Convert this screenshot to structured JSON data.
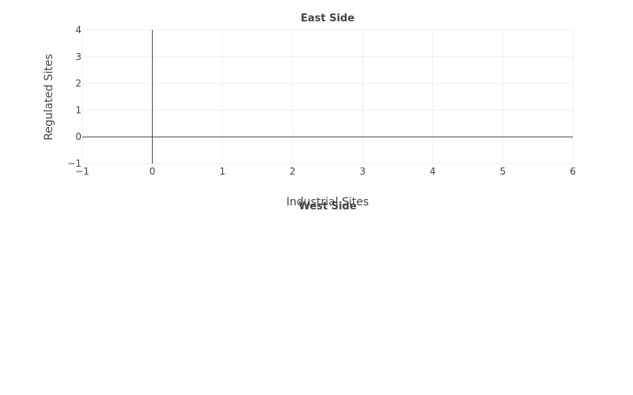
{
  "chart_data": [
    {
      "panel": "East Side",
      "type": "scatter",
      "title": "East Side",
      "xlabel": "Industrial Sites",
      "ylabel": "Regulated Sites",
      "xlim": [
        -1,
        6
      ],
      "ylim": [
        -1,
        4
      ],
      "x_ticks": [
        "−1",
        "0",
        "1",
        "2",
        "3",
        "4",
        "5",
        "6"
      ],
      "y_ticks": [
        "−1",
        "0",
        "1",
        "2",
        "3",
        "4"
      ],
      "grid": true,
      "series": [
        {
          "x": [],
          "y": []
        }
      ]
    },
    {
      "panel": "West Side",
      "type": "scatter",
      "title": "West Side",
      "series": [
        {
          "x": [],
          "y": []
        }
      ]
    }
  ]
}
